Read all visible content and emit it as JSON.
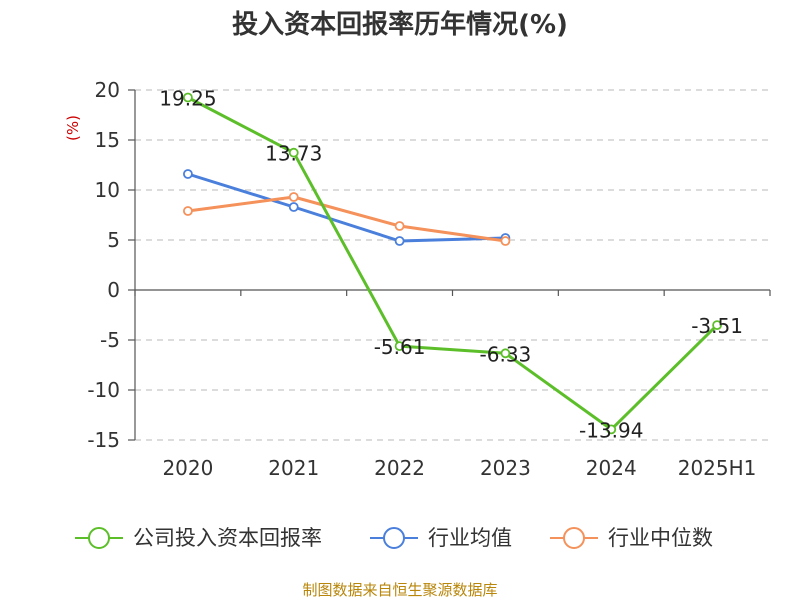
{
  "chart_data": {
    "type": "line",
    "title": "投入资本回报率历年情况(%)",
    "ylabel": "(%)",
    "categories": [
      "2020",
      "2021",
      "2022",
      "2023",
      "2024",
      "2025H1"
    ],
    "ylim": [
      -15,
      20
    ],
    "yticks": [
      20,
      15,
      10,
      5,
      0,
      -5,
      -10,
      -15
    ],
    "grid": true,
    "legend_position": "bottom",
    "series": [
      {
        "name": "公司投入资本回报率",
        "color": "#5cbf2a",
        "values": [
          19.25,
          13.73,
          -5.61,
          -6.33,
          -13.94,
          -3.51
        ],
        "labels": [
          "19.25",
          "13.73",
          "-5.61",
          "-6.33",
          "-13.94",
          "-3.51"
        ]
      },
      {
        "name": "行业均值",
        "color": "#4a7fdc",
        "values": [
          11.6,
          8.3,
          4.9,
          5.2,
          null,
          null
        ]
      },
      {
        "name": "行业中位数",
        "color": "#f5915a",
        "values": [
          7.9,
          9.3,
          6.4,
          4.9,
          null,
          null
        ]
      }
    ]
  },
  "source": "制图数据来自恒生聚源数据库"
}
